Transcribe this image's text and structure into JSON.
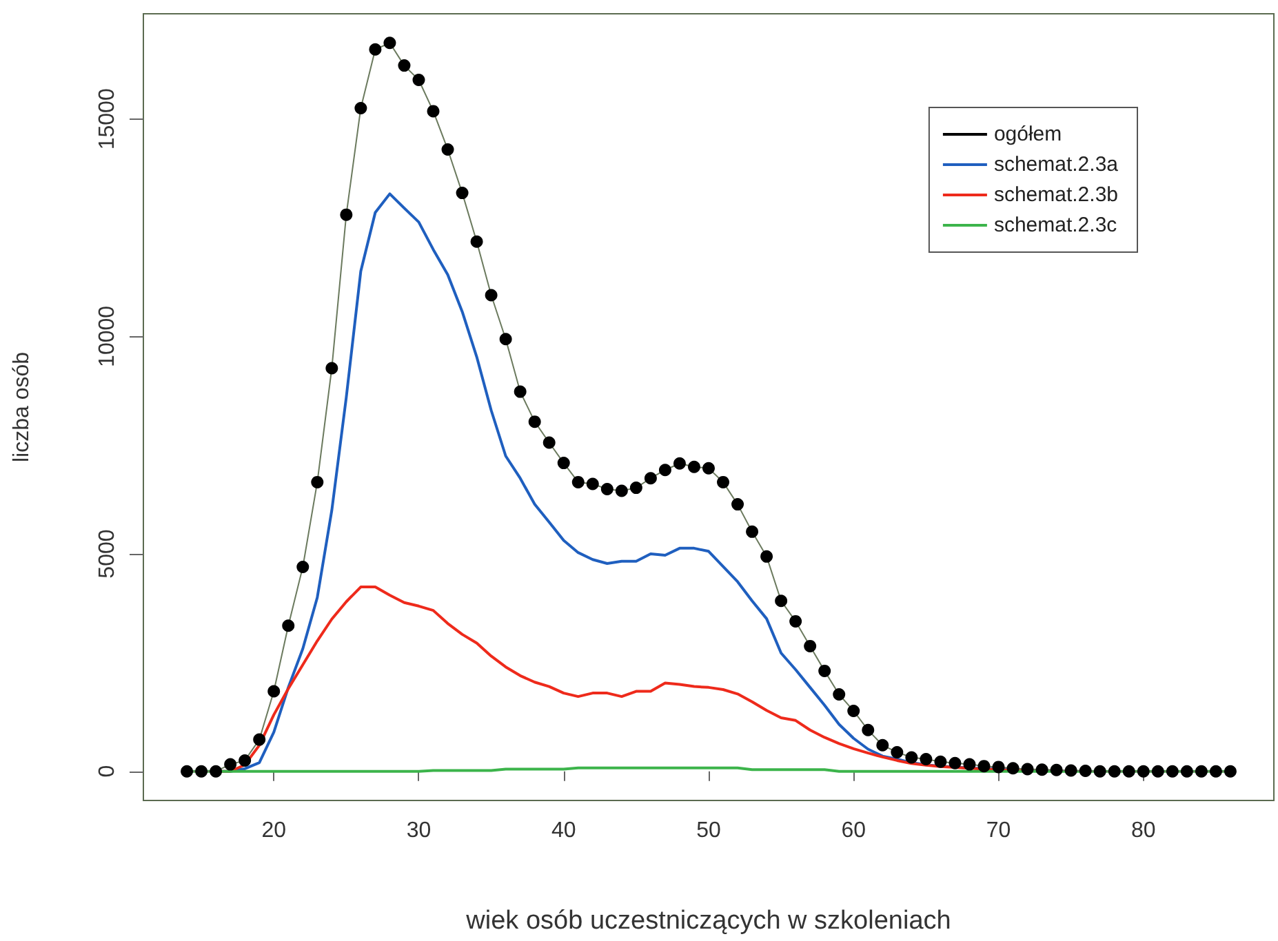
{
  "chart_data": {
    "type": "line",
    "xlabel": "wiek osób uczestniczących w szkoleniach",
    "ylabel": "liczba osób",
    "x": [
      14,
      15,
      16,
      17,
      18,
      19,
      20,
      21,
      22,
      23,
      24,
      25,
      26,
      27,
      28,
      29,
      30,
      31,
      32,
      33,
      34,
      35,
      36,
      37,
      38,
      39,
      40,
      41,
      42,
      43,
      44,
      45,
      46,
      47,
      48,
      49,
      50,
      51,
      52,
      53,
      54,
      55,
      56,
      57,
      58,
      59,
      60,
      61,
      62,
      63,
      64,
      65,
      66,
      67,
      68,
      69,
      70,
      71,
      72,
      73,
      74,
      75,
      76,
      77,
      78,
      79,
      80,
      81,
      82,
      83,
      84,
      85,
      86
    ],
    "series": [
      {
        "name": "ogółem",
        "color": "#000000",
        "marker": "circle",
        "values": [
          0,
          0,
          0,
          160,
          250,
          730,
          1840,
          3350,
          4700,
          6650,
          9270,
          12800,
          15250,
          16600,
          16750,
          16230,
          15900,
          15180,
          14300,
          13300,
          12180,
          10950,
          9940,
          8730,
          8040,
          7560,
          7090,
          6650,
          6610,
          6490,
          6450,
          6520,
          6740,
          6930,
          7080,
          7000,
          6970,
          6650,
          6140,
          5510,
          4940,
          3920,
          3450,
          2880,
          2310,
          1770,
          1390,
          950,
          600,
          440,
          320,
          280,
          220,
          190,
          160,
          120,
          100,
          70,
          50,
          40,
          30,
          20,
          10,
          0,
          0,
          0,
          0,
          0,
          0,
          0,
          0,
          0,
          0
        ]
      },
      {
        "name": "schemat.2.3a",
        "color": "#1f5fbf",
        "marker": "none",
        "values": [
          null,
          null,
          0,
          0,
          60,
          200,
          900,
          1930,
          2820,
          4000,
          6000,
          8600,
          11500,
          12850,
          13280,
          12950,
          12630,
          12000,
          11420,
          10570,
          9530,
          8300,
          7250,
          6740,
          6140,
          5730,
          5310,
          5030,
          4870,
          4780,
          4830,
          4830,
          5000,
          4970,
          5130,
          5130,
          5060,
          4710,
          4360,
          3920,
          3510,
          2720,
          2340,
          1930,
          1520,
          1080,
          760,
          510,
          350,
          280,
          200,
          150,
          120,
          100,
          80,
          60,
          50,
          30,
          null,
          null,
          null,
          null,
          null,
          null,
          null,
          null,
          null,
          null,
          null,
          null,
          null,
          null,
          null
        ]
      },
      {
        "name": "schemat.2.3b",
        "color": "#ee2a1b",
        "marker": "none",
        "values": [
          null,
          null,
          0,
          0,
          150,
          600,
          1300,
          1900,
          2450,
          3000,
          3500,
          3900,
          4240,
          4240,
          4050,
          3880,
          3800,
          3700,
          3400,
          3150,
          2950,
          2650,
          2400,
          2200,
          2050,
          1950,
          1800,
          1720,
          1800,
          1800,
          1720,
          1840,
          1840,
          2030,
          2000,
          1950,
          1930,
          1880,
          1780,
          1600,
          1400,
          1230,
          1170,
          950,
          780,
          640,
          520,
          420,
          330,
          250,
          180,
          140,
          110,
          90,
          70,
          50,
          40,
          20,
          10,
          null,
          null,
          null,
          null,
          null,
          null,
          null,
          null,
          null,
          null,
          null,
          null,
          null,
          null
        ]
      },
      {
        "name": "schemat.2.3c",
        "color": "#3cb44b",
        "marker": "none",
        "values": [
          0,
          0,
          0,
          0,
          0,
          0,
          0,
          0,
          0,
          0,
          0,
          0,
          0,
          0,
          0,
          0,
          0,
          20,
          20,
          20,
          20,
          20,
          50,
          50,
          50,
          50,
          50,
          80,
          80,
          80,
          80,
          80,
          80,
          80,
          80,
          80,
          80,
          80,
          80,
          40,
          40,
          40,
          40,
          40,
          40,
          0,
          0,
          0,
          0,
          0,
          0,
          0,
          0,
          0,
          0,
          0,
          0,
          0,
          0,
          0,
          0,
          0,
          0,
          0,
          0,
          0,
          0,
          0,
          0,
          0,
          0,
          0,
          0
        ]
      }
    ],
    "xlim": [
      11,
      89
    ],
    "xticks": [
      20,
      30,
      40,
      50,
      60,
      70,
      80
    ],
    "ylim": [
      -670,
      17420
    ],
    "yticks": [
      0,
      5000,
      10000,
      15000
    ],
    "grid": false,
    "legend": "top right"
  }
}
